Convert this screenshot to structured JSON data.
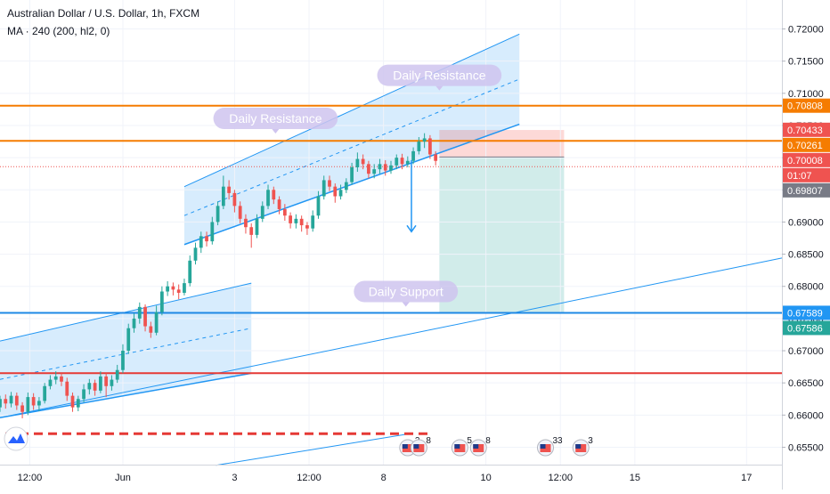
{
  "header": {
    "symbol_line": "Australian Dollar / U.S. Dollar, 1h, FXCM",
    "indicator_line": "MA · 240 (200, hl2, 0)"
  },
  "chart_data": {
    "type": "candlestick",
    "title": "Australian Dollar / U.S. Dollar, 1h, FXCM",
    "indicator": "MA · 240 (200, hl2, 0)",
    "y_axis": {
      "range": [
        0.6523,
        0.7245
      ],
      "ticks": [
        "0.72000",
        "0.71500",
        "0.71000",
        "0.70500",
        "0.70000",
        "0.69500",
        "0.69000",
        "0.68500",
        "0.68000",
        "0.67500",
        "0.67000",
        "0.66500",
        "0.66000",
        "0.65500"
      ],
      "tick_values": [
        0.72,
        0.715,
        0.71,
        0.705,
        0.7,
        0.695,
        0.69,
        0.685,
        0.68,
        0.675,
        0.67,
        0.665,
        0.66,
        0.655
      ]
    },
    "x_axis": {
      "ticks": [
        "12:00",
        "Jun",
        "3",
        "12:00",
        "8",
        "10",
        "12:00",
        "15",
        "17"
      ],
      "range": [
        -1.6,
        40.4
      ],
      "tick_values": [
        0,
        5,
        11,
        15,
        19,
        24.5,
        28.5,
        32.5,
        38.5
      ]
    },
    "price_tags": [
      {
        "label": "0.70808",
        "value": 0.70808,
        "color": "#f57c00"
      },
      {
        "label": "0.70433",
        "value": 0.70433,
        "color": "#ef5350"
      },
      {
        "label": "0.70261",
        "value": 0.70261,
        "color": "#f57c00"
      },
      {
        "label": "0.70008",
        "value": 0.70008,
        "color": "#ef5350"
      },
      {
        "label": "01:07",
        "value": 0.6986,
        "color": "#ef5350"
      },
      {
        "label": "0.69807",
        "value": 0.69807,
        "color": "#787b86"
      },
      {
        "label": "0.67589",
        "value": 0.67589,
        "color": "#2196f3"
      },
      {
        "label": "0.67586",
        "value": 0.67586,
        "color": "#26a69a"
      }
    ],
    "horizontal_levels": [
      {
        "value": 0.70808,
        "color": "#f57c00",
        "style": "solid"
      },
      {
        "value": 0.70261,
        "color": "#f57c00",
        "style": "solid"
      },
      {
        "value": 0.6986,
        "color": "#ef5350",
        "style": "dotted"
      },
      {
        "value": 0.67589,
        "color": "#1e88e5",
        "style": "solid"
      },
      {
        "value": 0.66652,
        "color": "#e53935",
        "style": "solid"
      },
      {
        "value": 0.6571,
        "color": "#e53935",
        "style": "dashed"
      }
    ],
    "annotations": [
      {
        "text": "Daily Resistance",
        "x": 22.0,
        "y": 0.7128
      },
      {
        "text": "Daily Resistance",
        "x": 13.2,
        "y": 0.7061
      },
      {
        "text": "Daily Support",
        "x": 20.2,
        "y": 0.6792
      }
    ],
    "trade_box": {
      "x_start": 22.0,
      "x_end": 28.7,
      "stop_top": 0.7043,
      "entry": 0.7001,
      "target": 0.6759
    },
    "channels": [
      {
        "x_start": 8.3,
        "x_end": 26.3,
        "lower_start": 0.6865,
        "lower_end": 0.7052,
        "upper_start": 0.6955,
        "upper_end": 0.7192
      },
      {
        "x_start": -1.6,
        "x_end": 11.9,
        "lower_start": 0.6596,
        "lower_end": 0.6665,
        "upper_start": 0.6715,
        "upper_end": 0.6805
      }
    ],
    "trend_lines": [
      {
        "x1": -1.6,
        "y1": 0.6596,
        "x2": 40.4,
        "y2": 0.6844
      },
      {
        "x1": 10.0,
        "y1": 0.6522,
        "x2": 20.6,
        "y2": 0.6572
      }
    ],
    "arrow": {
      "x": 20.5,
      "y_from": 0.6996,
      "y_to": 0.6885
    },
    "candles": [
      [
        -1.6,
        0.6612,
        0.6625,
        0.6605,
        0.663
      ],
      [
        -1.3,
        0.6625,
        0.6618,
        0.661,
        0.6632
      ],
      [
        -1.0,
        0.6618,
        0.663,
        0.6612,
        0.6636
      ],
      [
        -0.7,
        0.663,
        0.6615,
        0.6608,
        0.6635
      ],
      [
        -0.4,
        0.6615,
        0.6605,
        0.6595,
        0.662
      ],
      [
        -0.1,
        0.6605,
        0.6628,
        0.66,
        0.6635
      ],
      [
        0.2,
        0.6628,
        0.6615,
        0.6608,
        0.6634
      ],
      [
        0.5,
        0.6615,
        0.6622,
        0.6606,
        0.6628
      ],
      [
        0.8,
        0.6622,
        0.6645,
        0.6618,
        0.665
      ],
      [
        1.1,
        0.6645,
        0.6655,
        0.664,
        0.6662
      ],
      [
        1.4,
        0.6655,
        0.666,
        0.6648,
        0.6668
      ],
      [
        1.7,
        0.666,
        0.6652,
        0.6645,
        0.6665
      ],
      [
        2.0,
        0.6652,
        0.663,
        0.6622,
        0.6658
      ],
      [
        2.3,
        0.663,
        0.6612,
        0.6605,
        0.6635
      ],
      [
        2.6,
        0.6612,
        0.6625,
        0.6606,
        0.663
      ],
      [
        2.9,
        0.6625,
        0.664,
        0.662,
        0.6648
      ],
      [
        3.2,
        0.664,
        0.665,
        0.6632,
        0.6656
      ],
      [
        3.5,
        0.665,
        0.6638,
        0.663,
        0.6655
      ],
      [
        3.8,
        0.6638,
        0.666,
        0.6634,
        0.6668
      ],
      [
        4.1,
        0.666,
        0.6645,
        0.6628,
        0.6665
      ],
      [
        4.4,
        0.6645,
        0.6655,
        0.6638,
        0.6662
      ],
      [
        4.7,
        0.6655,
        0.667,
        0.665,
        0.6678
      ],
      [
        5.0,
        0.667,
        0.67,
        0.6665,
        0.671
      ],
      [
        5.3,
        0.67,
        0.6735,
        0.6695,
        0.6742
      ],
      [
        5.6,
        0.6735,
        0.675,
        0.6728,
        0.6758
      ],
      [
        5.9,
        0.675,
        0.6768,
        0.6742,
        0.6775
      ],
      [
        6.2,
        0.6768,
        0.6738,
        0.673,
        0.6772
      ],
      [
        6.5,
        0.6738,
        0.6728,
        0.672,
        0.6745
      ],
      [
        6.8,
        0.6728,
        0.676,
        0.6724,
        0.677
      ],
      [
        7.1,
        0.676,
        0.6792,
        0.6755,
        0.68
      ],
      [
        7.4,
        0.6792,
        0.68,
        0.6785,
        0.6808
      ],
      [
        7.7,
        0.68,
        0.6795,
        0.6786,
        0.6806
      ],
      [
        8.0,
        0.6795,
        0.679,
        0.678,
        0.6803
      ],
      [
        8.3,
        0.679,
        0.6805,
        0.6786,
        0.6812
      ],
      [
        8.6,
        0.6805,
        0.684,
        0.68,
        0.6848
      ],
      [
        8.9,
        0.684,
        0.686,
        0.6834,
        0.6868
      ],
      [
        9.2,
        0.686,
        0.6878,
        0.6852,
        0.6885
      ],
      [
        9.5,
        0.6878,
        0.687,
        0.6862,
        0.6885
      ],
      [
        9.8,
        0.687,
        0.69,
        0.6865,
        0.6908
      ],
      [
        10.1,
        0.69,
        0.6925,
        0.6895,
        0.6932
      ],
      [
        10.4,
        0.6925,
        0.6955,
        0.692,
        0.6972
      ],
      [
        10.7,
        0.6955,
        0.6945,
        0.6935,
        0.6965
      ],
      [
        11.0,
        0.6945,
        0.6925,
        0.6915,
        0.695
      ],
      [
        11.3,
        0.6925,
        0.6905,
        0.6898,
        0.6932
      ],
      [
        11.6,
        0.6905,
        0.6892,
        0.6882,
        0.6912
      ],
      [
        11.9,
        0.6892,
        0.688,
        0.686,
        0.6898
      ],
      [
        12.2,
        0.688,
        0.6905,
        0.6875,
        0.6912
      ],
      [
        12.5,
        0.6905,
        0.6925,
        0.69,
        0.6932
      ],
      [
        12.8,
        0.6925,
        0.695,
        0.692,
        0.6958
      ],
      [
        13.1,
        0.695,
        0.6935,
        0.6928,
        0.6955
      ],
      [
        13.4,
        0.6935,
        0.692,
        0.6912,
        0.694
      ],
      [
        13.7,
        0.692,
        0.691,
        0.6902,
        0.6928
      ],
      [
        14.0,
        0.691,
        0.6898,
        0.689,
        0.6915
      ],
      [
        14.3,
        0.6898,
        0.6905,
        0.689,
        0.6912
      ],
      [
        14.6,
        0.6905,
        0.6895,
        0.6885,
        0.691
      ],
      [
        14.9,
        0.6895,
        0.689,
        0.688,
        0.69
      ],
      [
        15.2,
        0.689,
        0.691,
        0.6885,
        0.6918
      ],
      [
        15.5,
        0.691,
        0.694,
        0.6905,
        0.6948
      ],
      [
        15.8,
        0.694,
        0.6965,
        0.6935,
        0.6972
      ],
      [
        16.1,
        0.6965,
        0.6955,
        0.6948,
        0.6972
      ],
      [
        16.4,
        0.6955,
        0.694,
        0.693,
        0.696
      ],
      [
        16.7,
        0.694,
        0.695,
        0.6935,
        0.6958
      ],
      [
        17.0,
        0.695,
        0.6962,
        0.6945,
        0.6968
      ],
      [
        17.3,
        0.6962,
        0.6985,
        0.6958,
        0.6992
      ],
      [
        17.6,
        0.6985,
        0.6998,
        0.6978,
        0.7008
      ],
      [
        17.9,
        0.6998,
        0.699,
        0.6982,
        0.7005
      ],
      [
        18.2,
        0.699,
        0.6975,
        0.6968,
        0.6995
      ],
      [
        18.5,
        0.6975,
        0.6982,
        0.6968,
        0.699
      ],
      [
        18.8,
        0.6982,
        0.699,
        0.6975,
        0.6998
      ],
      [
        19.1,
        0.699,
        0.698,
        0.6972,
        0.6996
      ],
      [
        19.4,
        0.698,
        0.6988,
        0.6975,
        0.6995
      ],
      [
        19.7,
        0.6988,
        0.7,
        0.6982,
        0.7005
      ],
      [
        20.0,
        0.7,
        0.699,
        0.6982,
        0.7006
      ],
      [
        20.3,
        0.699,
        0.6995,
        0.6985,
        0.7002
      ],
      [
        20.6,
        0.6995,
        0.701,
        0.699,
        0.7016
      ],
      [
        20.9,
        0.701,
        0.7025,
        0.7005,
        0.7032
      ],
      [
        21.2,
        0.7025,
        0.703,
        0.7015,
        0.7038
      ],
      [
        21.5,
        0.703,
        0.7005,
        0.6998,
        0.7035
      ],
      [
        21.8,
        0.7005,
        0.6995,
        0.6988,
        0.701
      ]
    ],
    "event_icons": [
      {
        "x": 20.3,
        "label": "2"
      },
      {
        "x": 20.9,
        "label": "8"
      },
      {
        "x": 23.1,
        "label": "5"
      },
      {
        "x": 24.1,
        "label": "8"
      },
      {
        "x": 27.7,
        "label": "33"
      },
      {
        "x": 29.6,
        "label": "3"
      }
    ]
  }
}
